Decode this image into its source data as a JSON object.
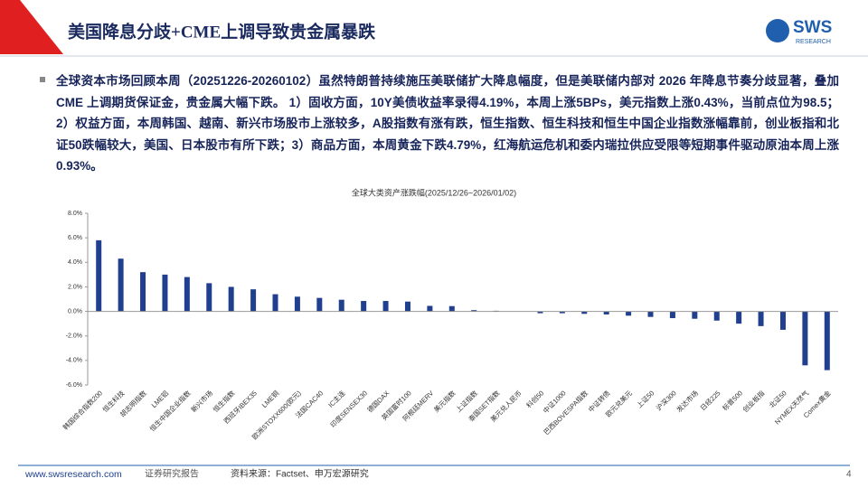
{
  "header": {
    "title": "美国降息分歧+CME上调导致贵金属暴跌",
    "logo": "SWS",
    "logo_sub": "RESEARCH"
  },
  "summary": "全球资本市场回顾本周（20251226-20260102）虽然特朗普持续施压美联储扩大降息幅度，但是美联储内部对 2026 年降息节奏分歧显著，叠加 CME 上调期货保证金，贵金属大幅下跌。 1）固收方面，10Y美债收益率录得4.19%，本周上涨5BPs，美元指数上涨0.43%，当前点位为98.5；2）权益方面，本周韩国、越南、新兴市场股市上涨较多，A股指数有涨有跌，恒生指数、恒生科技和恒生中国企业指数涨幅靠前，创业板指和北证50跌幅较大，美国、日本股市有所下跌；3）商品方面，本周黄金下跌4.79%，红海航运危机和委内瑞拉供应受限等短期事件驱动原油本周上涨0.93%。",
  "chart_data": {
    "type": "bar",
    "title": "全球大类资产涨跌幅(2025/12/26~2026/01/02)",
    "categories": [
      "韩国综合指数200",
      "恒生科技",
      "胡志明指数",
      "LME铝",
      "恒生中国企业指数",
      "新兴市场",
      "恒生指数",
      "西班牙IBEX35",
      "LME铜",
      "欧洲STOXX600(欧元)",
      "法国CAC40",
      "IC主连",
      "印度SENSEX30",
      "德国DAX",
      "英国富时100",
      "阿根廷MERV",
      "美元指数",
      "上证指数",
      "泰国SET指数",
      "美元兑人民币",
      "科创50",
      "中证1000",
      "巴西BOVESPA指数",
      "中证转债",
      "欧元兑美元",
      "上证50",
      "沪深300",
      "发达市场",
      "日经225",
      "标普500",
      "创业板指",
      "北证50",
      "NYMEX天然气",
      "Comex黄金"
    ],
    "values": [
      5.8,
      4.3,
      3.2,
      3.0,
      2.8,
      2.3,
      2.0,
      1.8,
      1.4,
      1.2,
      1.1,
      0.95,
      0.85,
      0.85,
      0.8,
      0.45,
      0.43,
      0.1,
      0.05,
      -0.02,
      -0.15,
      -0.15,
      -0.2,
      -0.25,
      -0.35,
      -0.45,
      -0.55,
      -0.6,
      -0.75,
      -1.0,
      -1.2,
      -1.5,
      -4.4,
      -4.79
    ],
    "color": "#203f8e",
    "ylim": [
      -6,
      8
    ],
    "yticks": [
      {
        "value": 8,
        "label": "8.0%"
      },
      {
        "value": 6,
        "label": "6.0%"
      },
      {
        "value": 4,
        "label": "4.0%"
      },
      {
        "value": 2,
        "label": "2.0%"
      },
      {
        "value": 0,
        "label": "0.0%"
      },
      {
        "value": -2,
        "label": "-2.0%"
      },
      {
        "value": -4,
        "label": "-4.0%"
      },
      {
        "value": -6,
        "label": "-6.0%"
      }
    ],
    "grid": false
  },
  "footer": {
    "site": "www.swsresearch.com",
    "type": "证券研究报告",
    "source": "资料来源：Factset、申万宏源研究",
    "page": "4"
  }
}
